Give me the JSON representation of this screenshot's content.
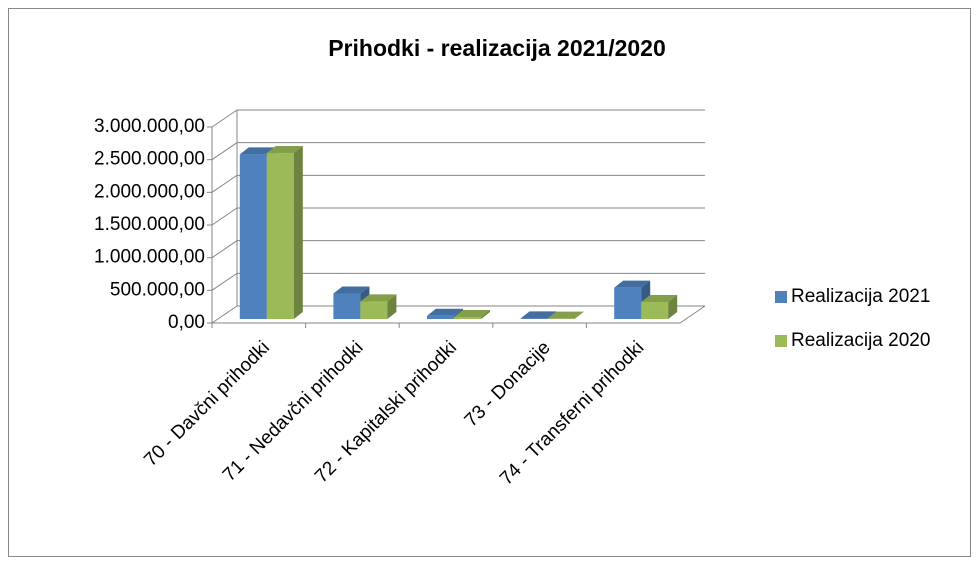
{
  "chart_data": {
    "type": "bar3d",
    "title": "Prihodki - realizacija 2021/2020",
    "categories": [
      "70 - Davčni prihodki",
      "71 - Nedavčni prihodki",
      "72 - Kapitalski prihodki",
      "73 - Donacije",
      "74 - Transferni prihodki"
    ],
    "series": [
      {
        "name": "Realizacija 2021",
        "color": "#4f81bd",
        "values": [
          2520000,
          390000,
          50000,
          10000,
          480000
        ]
      },
      {
        "name": "Realizacija 2020",
        "color": "#9bbb59",
        "values": [
          2540000,
          270000,
          30000,
          5000,
          260000
        ]
      }
    ],
    "ylim": [
      0,
      3000000
    ],
    "yticks": [
      {
        "value": 0,
        "label": "0,00"
      },
      {
        "value": 500000,
        "label": "500.000,00"
      },
      {
        "value": 1000000,
        "label": "1.000.000,00"
      },
      {
        "value": 1500000,
        "label": "1.500.000,00"
      },
      {
        "value": 2000000,
        "label": "2.000.000,00"
      },
      {
        "value": 2500000,
        "label": "2.500.000,00"
      },
      {
        "value": 3000000,
        "label": "3.000.000,00"
      }
    ],
    "grid": true,
    "legend": "right"
  }
}
